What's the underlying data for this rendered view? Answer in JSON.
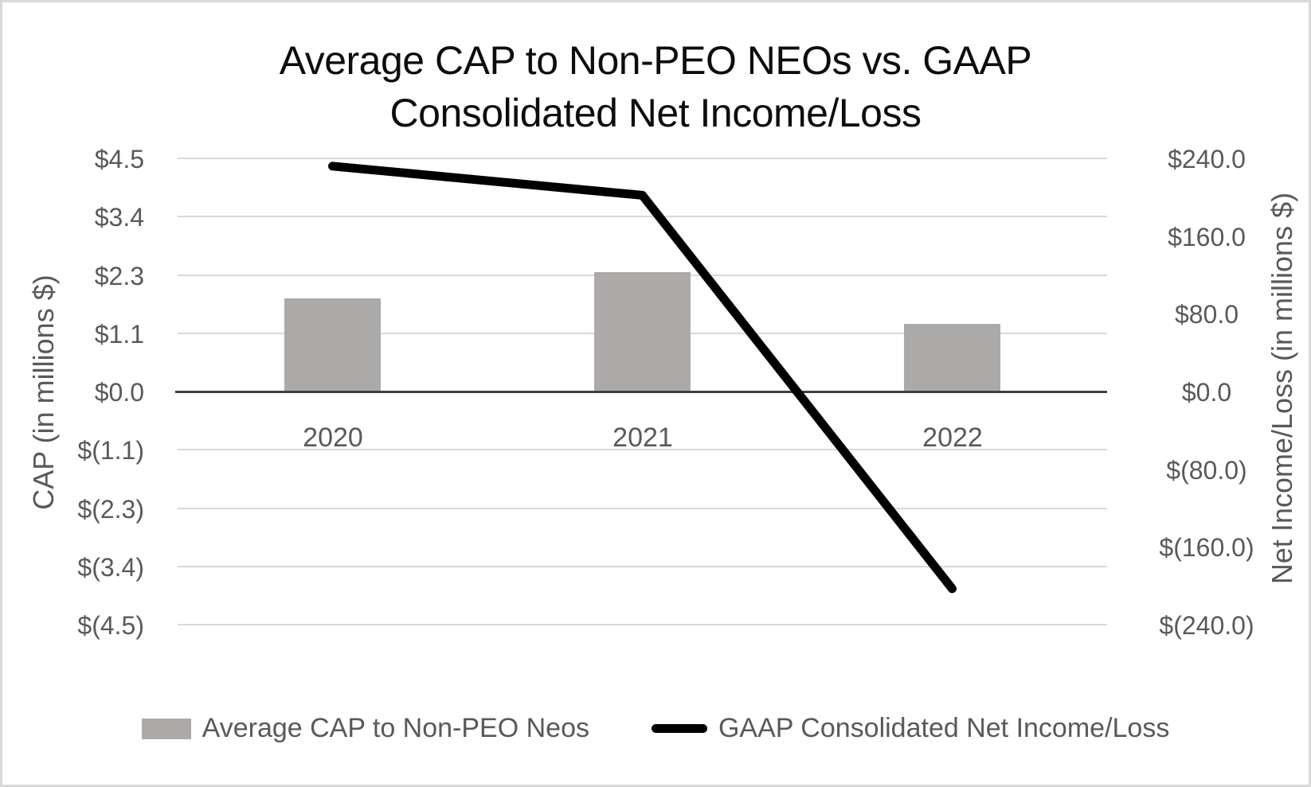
{
  "chart_data": {
    "type": "bar+line",
    "title": "Average CAP to Non-PEO NEOs vs. GAAP Consolidated Net Income/Loss",
    "title_lines": [
      "Average CAP to Non-PEO NEOs vs. GAAP",
      "Consolidated Net Income/Loss"
    ],
    "categories": [
      "2020",
      "2021",
      "2022"
    ],
    "series": [
      {
        "name": "Average CAP to Non-PEO Neos",
        "type": "bar",
        "axis": "left",
        "values": [
          1.8,
          2.3,
          1.3
        ],
        "color": "#ACA9A9"
      },
      {
        "name": "GAAP Consolidated Net Income/Loss",
        "type": "line",
        "axis": "right",
        "values": [
          232,
          202,
          -203
        ],
        "color": "#000000"
      }
    ],
    "left_axis": {
      "title": "CAP (in millions $)",
      "tick_labels": [
        "$4.5",
        "$3.4",
        "$2.3",
        "$1.1",
        "$0.0",
        "$(1.1)",
        "$(2.3)",
        "$(3.4)",
        "$(4.5)"
      ],
      "range": [
        -4.5,
        4.5
      ],
      "major_unit": 1.125
    },
    "right_axis": {
      "title": "Net Income/Loss (in millions $)",
      "tick_labels": [
        "$240.0",
        "$160.0",
        "$80.0",
        "$0.0",
        "$(80.0)",
        "$(160.0)",
        "$(240.0)"
      ],
      "range": [
        -240,
        240
      ],
      "major_unit": 80
    },
    "grid": true,
    "legend_position": "bottom",
    "colors": {
      "bar_fill": "#ACA9A9",
      "line_stroke": "#000000",
      "gridline": "#D9D9D9",
      "zero_axis_line": "#404040",
      "label_text": "#595959",
      "title_text": "#0D0D0D",
      "chart_border": "#D9D9D9",
      "background": "#FFFFFF"
    }
  }
}
